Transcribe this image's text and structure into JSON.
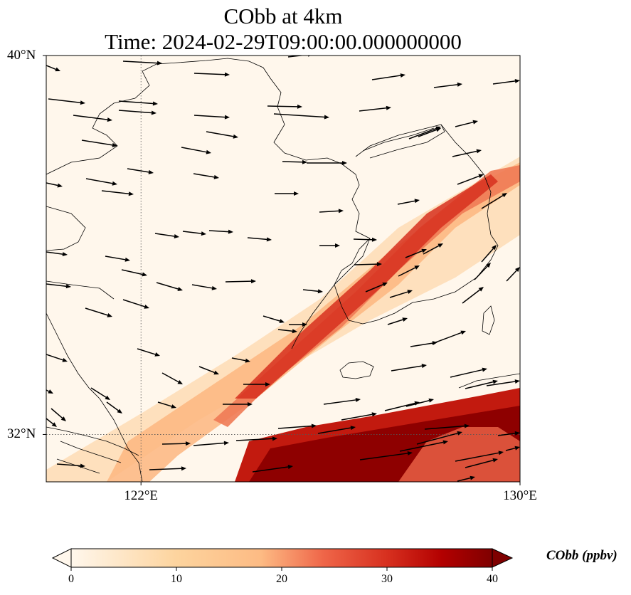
{
  "title_line1": "CObb at 4km",
  "title_line2": "Time: 2024-02-29T09:00:00.000000000",
  "axes": {
    "y_ticks": [
      {
        "label": "40°N",
        "lat": 40
      },
      {
        "label": "32°N",
        "lat": 32
      }
    ],
    "x_ticks": [
      {
        "label": "122°E",
        "lon": 122
      },
      {
        "label": "130°E",
        "lon": 130
      }
    ],
    "lon_range": [
      120,
      130
    ],
    "lat_range": [
      31,
      40
    ],
    "gridlines": "dotted"
  },
  "colorbar": {
    "label": "CObb (ppbv)",
    "ticks": [
      "0",
      "10",
      "20",
      "30",
      "40"
    ],
    "range": [
      0,
      40
    ],
    "colormap": "OrRd",
    "extend": "both"
  },
  "colors": {
    "low": "#fff7ec",
    "mid": "#fdbb84",
    "high": "#d7301f",
    "max": "#7f0000"
  }
}
